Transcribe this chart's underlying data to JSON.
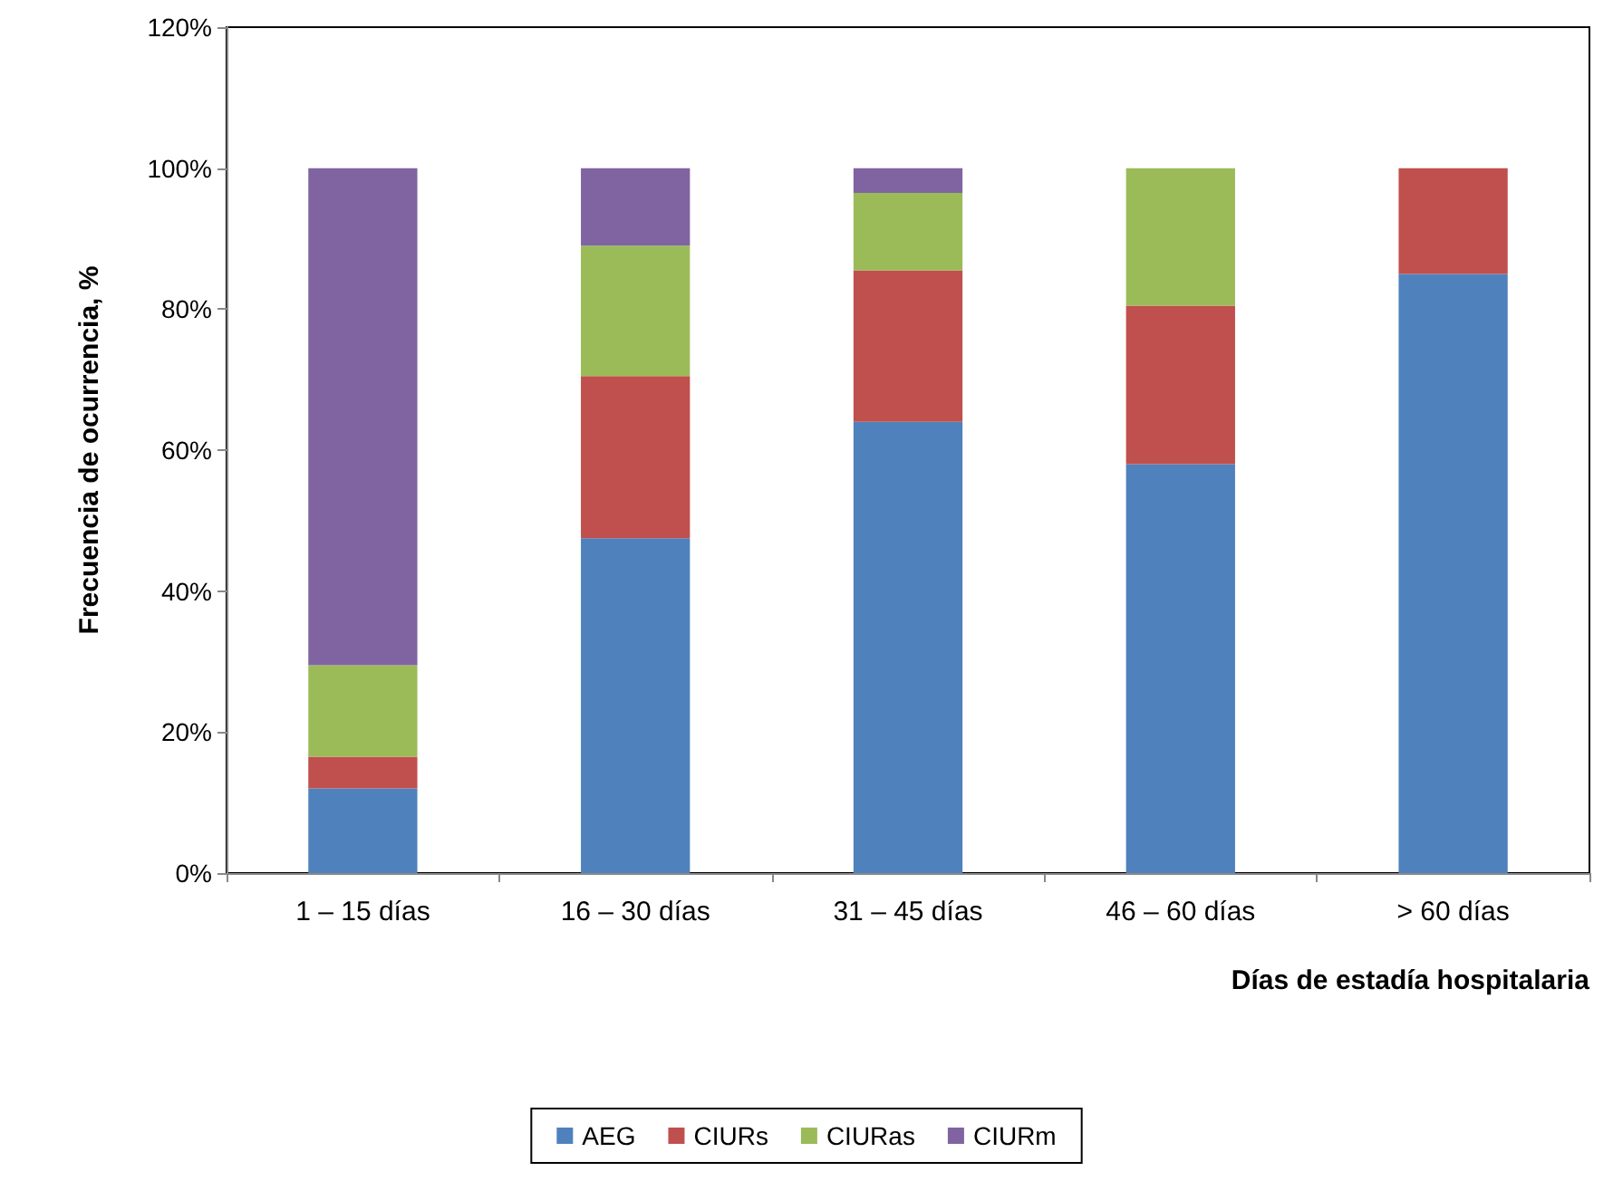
{
  "chart_data": {
    "type": "bar",
    "stacked": true,
    "xlabel": "Días de estadía hospitalaria",
    "ylabel": "Frecuencia de ocurrencia, %",
    "categories": [
      "1 – 15 días",
      "16 – 30 días",
      "31 – 45 días",
      "46 – 60 días",
      "> 60 días"
    ],
    "series": [
      {
        "name": "AEG",
        "color": "#4f81bd",
        "values": [
          12,
          47.5,
          64,
          58,
          85
        ]
      },
      {
        "name": "CIURs",
        "color": "#c0504d",
        "values": [
          4.5,
          23,
          21.5,
          22.5,
          15
        ]
      },
      {
        "name": "CIURas",
        "color": "#9bbb59",
        "values": [
          13,
          18.5,
          11,
          19.5,
          0
        ]
      },
      {
        "name": "CIURm",
        "color": "#8064a2",
        "values": [
          70.5,
          11,
          3.5,
          0,
          0
        ]
      }
    ],
    "ylim": [
      0,
      120
    ],
    "yticks": [
      {
        "value": 0,
        "label": "0%"
      },
      {
        "value": 20,
        "label": "20%"
      },
      {
        "value": 40,
        "label": "40%"
      },
      {
        "value": 60,
        "label": "60%"
      },
      {
        "value": 80,
        "label": "80%"
      },
      {
        "value": 100,
        "label": "100%"
      },
      {
        "value": 120,
        "label": "120%"
      }
    ],
    "grid": false,
    "legend": "bottom"
  }
}
